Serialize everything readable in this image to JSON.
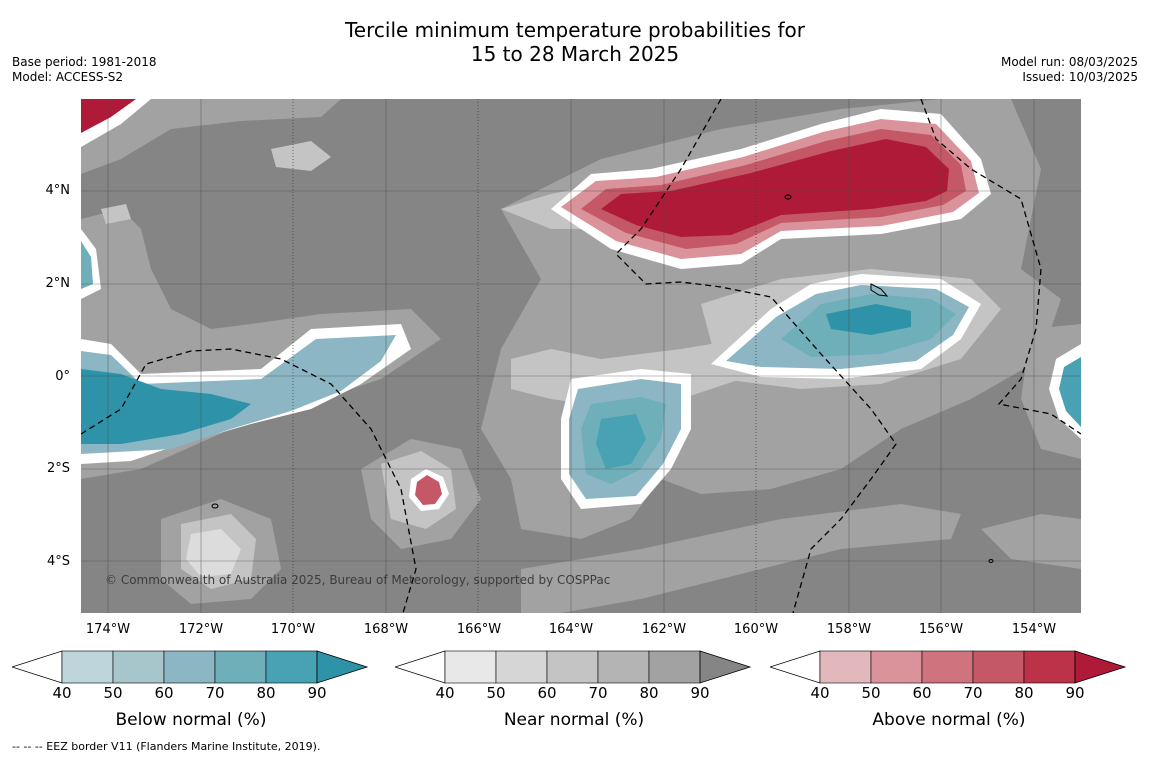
{
  "title_line1": "Tercile minimum temperature probabilities for",
  "title_line2": "15 to 28 March 2025",
  "base_period": "Base period: 1981-2018",
  "model": "Model: ACCESS-S2",
  "model_run": "Model run: 08/03/2025",
  "issued": "Issued: 10/03/2025",
  "copyright": "© Commonwealth of Australia 2025, Bureau of Meteorology, supported by COSPPac",
  "footer": "-- -- -- EEZ border V11 (Flanders Marine Institute, 2019).",
  "lat_labels": [
    "4°N",
    "2°N",
    "0°",
    "2°S",
    "4°S"
  ],
  "lon_labels": [
    "174°W",
    "172°W",
    "170°W",
    "168°W",
    "166°W",
    "164°W",
    "162°W",
    "160°W",
    "158°W",
    "156°W",
    "154°W"
  ],
  "colorbars": [
    {
      "title": "Below normal (%)",
      "ticks": [
        "40",
        "50",
        "60",
        "70",
        "80",
        "90"
      ],
      "colors": [
        "#bfd5dc",
        "#a6c6cc",
        "#8cb6c3",
        "#6eafba",
        "#48a2b3",
        "#2e93a8"
      ]
    },
    {
      "title": "Near normal (%)",
      "ticks": [
        "40",
        "50",
        "60",
        "70",
        "80",
        "90"
      ],
      "colors": [
        "#e8e8e8",
        "#d6d6d6",
        "#c4c4c4",
        "#b4b4b4",
        "#a2a2a2",
        "#858585"
      ]
    },
    {
      "title": "Above normal (%)",
      "ticks": [
        "40",
        "50",
        "60",
        "70",
        "80",
        "90"
      ],
      "colors": [
        "#e3b8bd",
        "#da929b",
        "#cf747f",
        "#c45866",
        "#bb3249",
        "#ae1a38"
      ]
    }
  ],
  "colors": {
    "near_high": "#858585",
    "near_mid": "#a2a2a2",
    "near_low": "#c4c4c4",
    "near_lowest": "#dcdcdc",
    "below_strong": "#2e93a8",
    "below_mid": "#48a2b3",
    "below_light": "#8cb6c3",
    "above_strong": "#ae1a38",
    "above_mid": "#c45866",
    "above_light": "#e3b8bd"
  }
}
